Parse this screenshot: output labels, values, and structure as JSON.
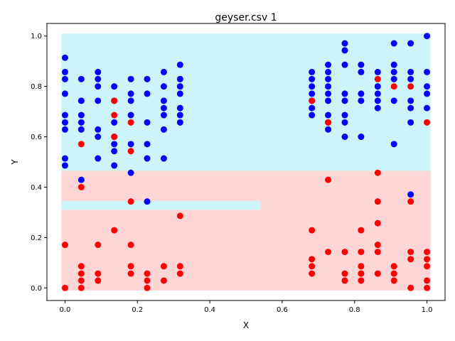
{
  "chart_data": {
    "type": "scatter",
    "title": "geyser.csv 1",
    "xlabel": "X",
    "ylabel": "Y",
    "xlim": [
      -0.05,
      1.05
    ],
    "ylim": [
      -0.05,
      1.05
    ],
    "grid": false,
    "xticks": [
      "0.0",
      "0.2",
      "0.4",
      "0.6",
      "0.8",
      "1.0"
    ],
    "xtick_values": [
      0,
      0.2,
      0.4,
      0.6,
      0.8,
      1.0
    ],
    "yticks": [
      "0.0",
      "0.2",
      "0.4",
      "0.6",
      "0.8",
      "1.0"
    ],
    "ytick_values": [
      0,
      0.2,
      0.4,
      0.6,
      0.8,
      1.0
    ],
    "regions": [
      {
        "class": "blue",
        "color": "#ccf5fa",
        "x": [
          -0.01,
          1.01
        ],
        "y": [
          0.465,
          1.01
        ]
      },
      {
        "class": "red",
        "color": "#ffd6d6",
        "x": [
          -0.01,
          1.01
        ],
        "y": [
          -0.01,
          0.465
        ]
      },
      {
        "class": "blue",
        "color": "#ccf5fa",
        "x": [
          -0.01,
          0.54
        ],
        "y": [
          0.31,
          0.345
        ]
      }
    ],
    "series": [
      {
        "color": "#0000ff",
        "points": [
          [
            0.0,
            0.914
          ],
          [
            0.0,
            0.857
          ],
          [
            0.0,
            0.829
          ],
          [
            0.0,
            0.771
          ],
          [
            0.0,
            0.686
          ],
          [
            0.0,
            0.657
          ],
          [
            0.0,
            0.629
          ],
          [
            0.0,
            0.514
          ],
          [
            0.0,
            0.486
          ],
          [
            0.045,
            0.829
          ],
          [
            0.045,
            0.743
          ],
          [
            0.045,
            0.686
          ],
          [
            0.045,
            0.657
          ],
          [
            0.045,
            0.629
          ],
          [
            0.045,
            0.429
          ],
          [
            0.091,
            0.857
          ],
          [
            0.091,
            0.829
          ],
          [
            0.091,
            0.8
          ],
          [
            0.091,
            0.743
          ],
          [
            0.091,
            0.629
          ],
          [
            0.091,
            0.6
          ],
          [
            0.091,
            0.514
          ],
          [
            0.136,
            0.8
          ],
          [
            0.136,
            0.743
          ],
          [
            0.136,
            0.657
          ],
          [
            0.136,
            0.6
          ],
          [
            0.136,
            0.571
          ],
          [
            0.136,
            0.543
          ],
          [
            0.136,
            0.486
          ],
          [
            0.182,
            0.829
          ],
          [
            0.182,
            0.771
          ],
          [
            0.182,
            0.743
          ],
          [
            0.182,
            0.686
          ],
          [
            0.182,
            0.571
          ],
          [
            0.182,
            0.457
          ],
          [
            0.227,
            0.829
          ],
          [
            0.227,
            0.771
          ],
          [
            0.227,
            0.657
          ],
          [
            0.227,
            0.571
          ],
          [
            0.227,
            0.514
          ],
          [
            0.227,
            0.343
          ],
          [
            0.273,
            0.857
          ],
          [
            0.273,
            0.8
          ],
          [
            0.273,
            0.743
          ],
          [
            0.273,
            0.714
          ],
          [
            0.273,
            0.686
          ],
          [
            0.273,
            0.629
          ],
          [
            0.273,
            0.514
          ],
          [
            0.318,
            0.886
          ],
          [
            0.318,
            0.829
          ],
          [
            0.318,
            0.8
          ],
          [
            0.318,
            0.771
          ],
          [
            0.318,
            0.714
          ],
          [
            0.318,
            0.686
          ],
          [
            0.318,
            0.657
          ],
          [
            0.682,
            0.857
          ],
          [
            0.682,
            0.829
          ],
          [
            0.682,
            0.8
          ],
          [
            0.682,
            0.771
          ],
          [
            0.682,
            0.743
          ],
          [
            0.682,
            0.714
          ],
          [
            0.682,
            0.686
          ],
          [
            0.727,
            0.886
          ],
          [
            0.727,
            0.857
          ],
          [
            0.727,
            0.829
          ],
          [
            0.727,
            0.8
          ],
          [
            0.727,
            0.771
          ],
          [
            0.727,
            0.743
          ],
          [
            0.727,
            0.686
          ],
          [
            0.727,
            0.657
          ],
          [
            0.727,
            0.629
          ],
          [
            0.773,
            0.971
          ],
          [
            0.773,
            0.943
          ],
          [
            0.773,
            0.886
          ],
          [
            0.773,
            0.771
          ],
          [
            0.773,
            0.743
          ],
          [
            0.773,
            0.686
          ],
          [
            0.773,
            0.657
          ],
          [
            0.773,
            0.6
          ],
          [
            0.818,
            0.886
          ],
          [
            0.818,
            0.857
          ],
          [
            0.818,
            0.771
          ],
          [
            0.818,
            0.743
          ],
          [
            0.818,
            0.6
          ],
          [
            0.864,
            0.857
          ],
          [
            0.864,
            0.8
          ],
          [
            0.864,
            0.771
          ],
          [
            0.864,
            0.743
          ],
          [
            0.864,
            0.714
          ],
          [
            0.909,
            0.971
          ],
          [
            0.909,
            0.886
          ],
          [
            0.909,
            0.857
          ],
          [
            0.909,
            0.829
          ],
          [
            0.909,
            0.743
          ],
          [
            0.909,
            0.571
          ],
          [
            0.955,
            0.971
          ],
          [
            0.955,
            0.857
          ],
          [
            0.955,
            0.829
          ],
          [
            0.955,
            0.743
          ],
          [
            0.955,
            0.714
          ],
          [
            0.955,
            0.657
          ],
          [
            0.955,
            0.371
          ],
          [
            1.0,
            1.0
          ],
          [
            1.0,
            0.857
          ],
          [
            1.0,
            0.8
          ],
          [
            1.0,
            0.771
          ],
          [
            1.0,
            0.714
          ]
        ]
      },
      {
        "color": "#ff0000",
        "points": [
          [
            0.0,
            0.171
          ],
          [
            0.0,
            0.0
          ],
          [
            0.045,
            0.571
          ],
          [
            0.045,
            0.4
          ],
          [
            0.045,
            0.086
          ],
          [
            0.045,
            0.057
          ],
          [
            0.045,
            0.029
          ],
          [
            0.045,
            0.0
          ],
          [
            0.091,
            0.171
          ],
          [
            0.091,
            0.057
          ],
          [
            0.091,
            0.029
          ],
          [
            0.136,
            0.743
          ],
          [
            0.136,
            0.686
          ],
          [
            0.136,
            0.6
          ],
          [
            0.136,
            0.229
          ],
          [
            0.182,
            0.657
          ],
          [
            0.182,
            0.543
          ],
          [
            0.182,
            0.343
          ],
          [
            0.182,
            0.171
          ],
          [
            0.182,
            0.086
          ],
          [
            0.182,
            0.057
          ],
          [
            0.227,
            0.057
          ],
          [
            0.227,
            0.029
          ],
          [
            0.227,
            0.0
          ],
          [
            0.273,
            0.086
          ],
          [
            0.273,
            0.029
          ],
          [
            0.318,
            0.286
          ],
          [
            0.318,
            0.086
          ],
          [
            0.318,
            0.057
          ],
          [
            0.682,
            0.743
          ],
          [
            0.682,
            0.229
          ],
          [
            0.682,
            0.114
          ],
          [
            0.682,
            0.086
          ],
          [
            0.682,
            0.057
          ],
          [
            0.727,
            0.657
          ],
          [
            0.727,
            0.429
          ],
          [
            0.727,
            0.143
          ],
          [
            0.773,
            0.143
          ],
          [
            0.773,
            0.057
          ],
          [
            0.773,
            0.029
          ],
          [
            0.818,
            0.229
          ],
          [
            0.818,
            0.143
          ],
          [
            0.818,
            0.086
          ],
          [
            0.818,
            0.057
          ],
          [
            0.818,
            0.029
          ],
          [
            0.864,
            0.829
          ],
          [
            0.864,
            0.457
          ],
          [
            0.864,
            0.343
          ],
          [
            0.864,
            0.257
          ],
          [
            0.864,
            0.171
          ],
          [
            0.864,
            0.143
          ],
          [
            0.864,
            0.057
          ],
          [
            0.909,
            0.8
          ],
          [
            0.909,
            0.086
          ],
          [
            0.909,
            0.057
          ],
          [
            0.909,
            0.029
          ],
          [
            0.955,
            0.8
          ],
          [
            0.955,
            0.343
          ],
          [
            0.955,
            0.143
          ],
          [
            0.955,
            0.114
          ],
          [
            0.955,
            0.0
          ],
          [
            1.0,
            0.657
          ],
          [
            1.0,
            0.143
          ],
          [
            1.0,
            0.114
          ],
          [
            1.0,
            0.086
          ],
          [
            1.0,
            0.029
          ],
          [
            1.0,
            0.0
          ]
        ]
      }
    ]
  }
}
